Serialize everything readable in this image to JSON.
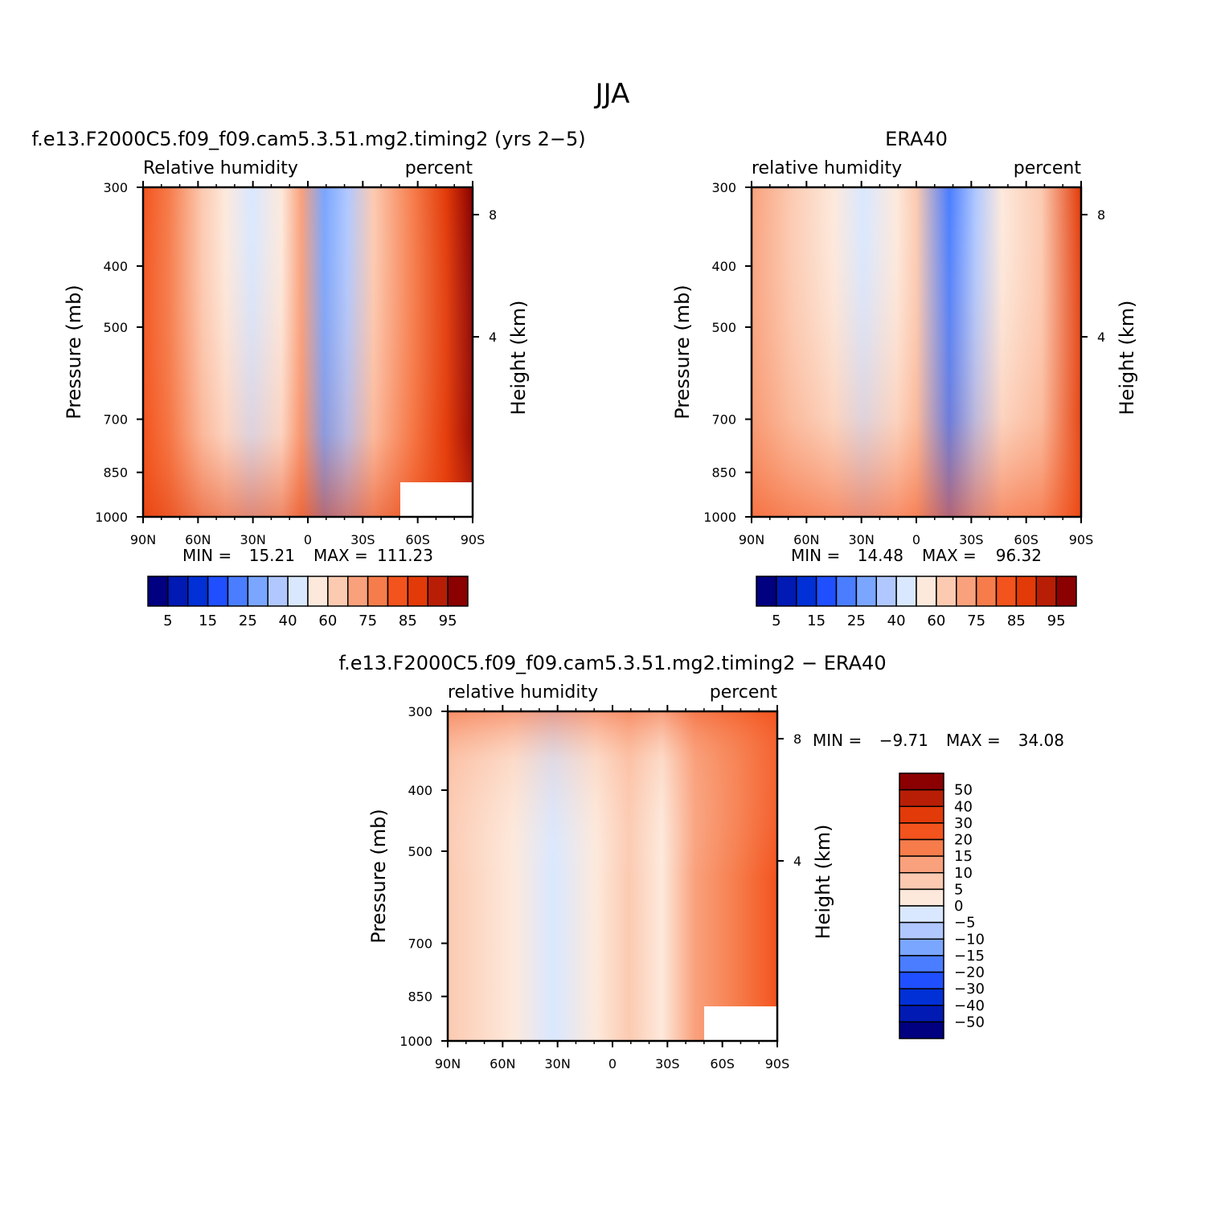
{
  "page_title": "JJA",
  "colors": {
    "rh_palette": [
      "#000080",
      "#001ab3",
      "#0030d6",
      "#1f4fff",
      "#4a7dff",
      "#7aa6ff",
      "#b0c8ff",
      "#d9e8ff",
      "#fde9dc",
      "#fccab1",
      "#f9a17c",
      "#f67c4b",
      "#f3531d",
      "#e23a08",
      "#b81e06",
      "#8b0000"
    ],
    "diff_palette": [
      "#8b0000",
      "#b81e06",
      "#e23a08",
      "#f3531d",
      "#f67c4b",
      "#f9a17c",
      "#fccab1",
      "#fde9dc",
      "#d9e8ff",
      "#b0c8ff",
      "#7aa6ff",
      "#4a7dff",
      "#1f4fff",
      "#0030d6",
      "#001ab3",
      "#000080"
    ]
  },
  "chart_data": [
    {
      "type": "heatmap",
      "title": "f.e13.F2000C5.f09_f09.cam5.3.51.mg2.timing2 (yrs 2−5)",
      "left_label": "Relative humidity",
      "right_label": "percent",
      "xlabel": "",
      "ylabel": "Pressure (mb)",
      "y2label": "Height (km)",
      "x_ticks": [
        "90N",
        "60N",
        "30N",
        "0",
        "30S",
        "60S",
        "90S"
      ],
      "y_ticks": [
        "300",
        "400",
        "500",
        "700",
        "850",
        "1000"
      ],
      "y2_ticks": [
        "8",
        "4"
      ],
      "stats": {
        "min_label": "MIN =",
        "min": "15.21",
        "max_label": "MAX =",
        "max": "111.23"
      },
      "colorbar_labels": [
        "5",
        "15",
        "25",
        "40",
        "60",
        "75",
        "85",
        "95"
      ],
      "ylim": [
        1000,
        300
      ],
      "log_scale_y": true
    },
    {
      "type": "heatmap",
      "title": "ERA40",
      "left_label": "relative humidity",
      "right_label": "percent",
      "xlabel": "",
      "ylabel": "Pressure (mb)",
      "y2label": "Height (km)",
      "x_ticks": [
        "90N",
        "60N",
        "30N",
        "0",
        "30S",
        "60S",
        "90S"
      ],
      "y_ticks": [
        "300",
        "400",
        "500",
        "700",
        "850",
        "1000"
      ],
      "y2_ticks": [
        "8",
        "4"
      ],
      "stats": {
        "min_label": "MIN =",
        "min": "14.48",
        "max_label": "MAX =",
        "max": "96.32"
      },
      "colorbar_labels": [
        "5",
        "15",
        "25",
        "40",
        "60",
        "75",
        "85",
        "95"
      ],
      "ylim": [
        1000,
        300
      ],
      "log_scale_y": true
    },
    {
      "type": "heatmap",
      "title": "f.e13.F2000C5.f09_f09.cam5.3.51.mg2.timing2 − ERA40",
      "left_label": "relative humidity",
      "right_label": "percent",
      "xlabel": "",
      "ylabel": "Pressure (mb)",
      "y2label": "Height (km)",
      "x_ticks": [
        "90N",
        "60N",
        "30N",
        "0",
        "30S",
        "60S",
        "90S"
      ],
      "y_ticks": [
        "300",
        "400",
        "500",
        "700",
        "850",
        "1000"
      ],
      "y2_ticks": [
        "8",
        "4"
      ],
      "stats": {
        "min_label": "MIN =",
        "min": "−9.71",
        "max_label": "MAX =",
        "max": "34.08"
      },
      "colorbar_labels": [
        "50",
        "40",
        "30",
        "20",
        "15",
        "10",
        "5",
        "0",
        "−5",
        "−10",
        "−15",
        "−20",
        "−30",
        "−40",
        "−50"
      ],
      "ylim": [
        1000,
        300
      ],
      "log_scale_y": true
    }
  ]
}
